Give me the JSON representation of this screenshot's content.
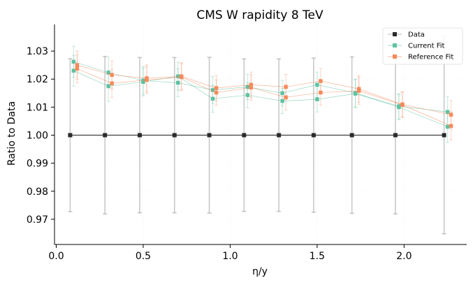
{
  "chart_data": {
    "type": "line",
    "title": "CMS W rapidity 8 TeV",
    "xlabel": "η/y",
    "ylabel": "Ratio to Data",
    "xlim": [
      -0.01,
      2.36
    ],
    "ylim": [
      0.961,
      1.0395
    ],
    "xticks": [
      0.0,
      0.5,
      1.0,
      1.5,
      2.0
    ],
    "xtick_labels": [
      "0.0",
      "0.5",
      "1.0",
      "1.5",
      "2.0"
    ],
    "yticks": [
      0.97,
      0.98,
      0.99,
      1.0,
      1.01,
      1.02,
      1.03
    ],
    "ytick_labels": [
      "0.97",
      "0.98",
      "0.99",
      "1.00",
      "1.01",
      "1.02",
      "1.03"
    ],
    "grid": true,
    "legend_position": "top-right",
    "colors": {
      "Data": "#2b2b2b",
      "Current Fit": "#5fc2a2",
      "Reference Fit": "#f68a5c"
    },
    "series": [
      {
        "name": "Data",
        "x": [
          0.08,
          0.28,
          0.48,
          0.68,
          0.88,
          1.08,
          1.28,
          1.48,
          1.7,
          1.95,
          2.23
        ],
        "y": [
          1.0,
          1.0,
          1.0,
          1.0,
          1.0,
          1.0,
          1.0,
          1.0,
          1.0,
          1.0,
          1.0
        ],
        "err": [
          0.0273,
          0.0281,
          0.0277,
          0.0277,
          0.0278,
          0.0272,
          0.0272,
          0.0275,
          0.0279,
          0.0281,
          0.0352
        ]
      },
      {
        "name": "Current Fit",
        "x": [
          0.1,
          0.3,
          0.5,
          0.7,
          0.9,
          1.1,
          1.3,
          1.5,
          1.72,
          1.97,
          2.25
        ],
        "y": [
          1.0262,
          1.0223,
          1.0195,
          1.0187,
          1.0161,
          1.0172,
          1.015,
          1.018,
          1.015,
          1.0103,
          1.0083
        ],
        "err": [
          0.0055,
          0.0055,
          0.005,
          0.005,
          0.0048,
          0.0045,
          0.0045,
          0.0045,
          0.005,
          0.0045,
          0.0055
        ]
      },
      {
        "name": "Current Fit",
        "x": [
          0.1,
          0.3,
          0.5,
          0.7,
          0.9,
          1.1,
          1.3,
          1.5,
          1.72,
          1.97,
          2.25
        ],
        "y": [
          1.023,
          1.0175,
          1.019,
          1.021,
          1.013,
          1.0143,
          1.0122,
          1.0128,
          1.0148,
          1.01,
          1.003
        ],
        "err": [
          0.0055,
          0.0055,
          0.005,
          0.005,
          0.0048,
          0.0045,
          0.0045,
          0.0045,
          0.005,
          0.0045,
          0.0055
        ]
      },
      {
        "name": "Reference Fit",
        "x": [
          0.12,
          0.32,
          0.52,
          0.72,
          0.92,
          1.12,
          1.32,
          1.52,
          1.74,
          1.99,
          2.27
        ],
        "y": [
          1.025,
          1.0215,
          1.0203,
          1.021,
          1.0168,
          1.018,
          1.0172,
          1.0193,
          1.0165,
          1.011,
          1.0073
        ],
        "err": [
          0.005,
          0.005,
          0.0048,
          0.0048,
          0.0045,
          0.0045,
          0.0045,
          0.0045,
          0.0048,
          0.0045,
          0.005
        ]
      },
      {
        "name": "Reference Fit",
        "x": [
          0.12,
          0.32,
          0.52,
          0.72,
          0.92,
          1.12,
          1.32,
          1.52,
          1.74,
          1.99,
          2.27
        ],
        "y": [
          1.0237,
          1.0185,
          1.0197,
          1.0207,
          1.0152,
          1.017,
          1.0135,
          1.0152,
          1.0158,
          1.0108,
          1.0033
        ],
        "err": [
          0.005,
          0.005,
          0.0048,
          0.0048,
          0.0045,
          0.0045,
          0.0045,
          0.0045,
          0.0048,
          0.0045,
          0.005
        ]
      }
    ]
  }
}
